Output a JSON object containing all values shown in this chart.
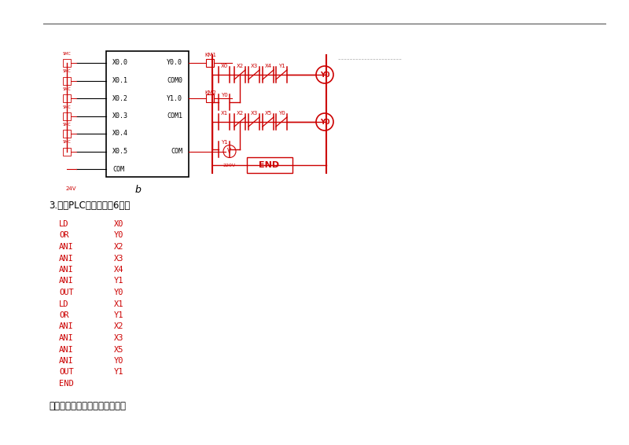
{
  "red": "#CC0000",
  "black": "#000000",
  "bg": "#FFFFFF",
  "heading_text": "3.编写PLC指令程序（6分）",
  "instructions": [
    [
      "LD",
      "X0"
    ],
    [
      "OR",
      "Y0"
    ],
    [
      "ANI",
      "X2"
    ],
    [
      "ANI",
      "X3"
    ],
    [
      "ANI",
      "X4"
    ],
    [
      "ANI",
      "Y1"
    ],
    [
      "OUT",
      "Y0"
    ],
    [
      "LD",
      "X1"
    ],
    [
      "OR",
      "Y1"
    ],
    [
      "ANI",
      "X2"
    ],
    [
      "ANI",
      "X3"
    ],
    [
      "ANI",
      "X5"
    ],
    [
      "ANI",
      "Y0"
    ],
    [
      "OUT",
      "Y1"
    ],
    [
      "END",
      ""
    ]
  ],
  "footer_text": "草稿纸部分（请不撕下，保留）",
  "plc_inputs": [
    "X0.0",
    "X0.1",
    "X0.2",
    "X0.3",
    "X0.4",
    "X0.5",
    "COM"
  ],
  "plc_outputs": [
    "Y0.0",
    "COM0",
    "Y1.0",
    "COM1",
    "COM"
  ]
}
